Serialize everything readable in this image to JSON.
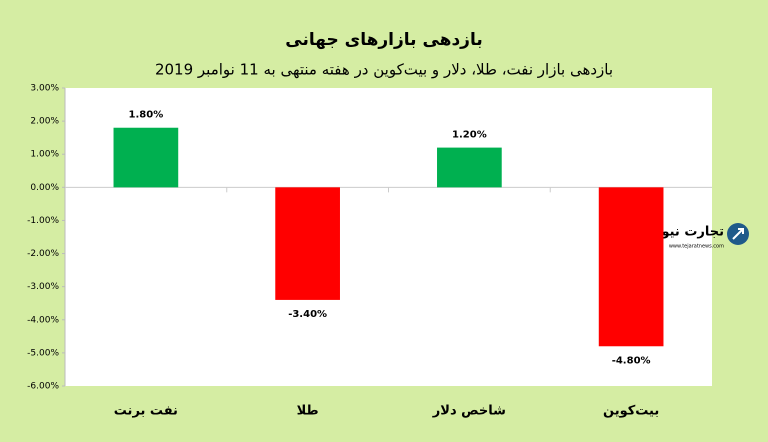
{
  "chart_data": {
    "type": "bar",
    "title": "بازدهی بازارهای جهانی",
    "subtitle": "بازدهی بازار نفت، طلا، دلار و بیت‌کوین در هفته منتهی به 11 نوامبر 2019",
    "categories": [
      "نفت برنت",
      "طلا",
      "شاخص دلار",
      "بیت‌کوین"
    ],
    "values": [
      1.8,
      -3.4,
      1.2,
      -4.8
    ],
    "value_labels": [
      "1.80%",
      "-3.40%",
      "1.20%",
      "-4.80%"
    ],
    "colors": [
      "#00b050",
      "#ff0000",
      "#00b050",
      "#ff0000"
    ],
    "ylim": [
      -6,
      3
    ],
    "yticks": [
      {
        "value": 3,
        "label": "3.00%"
      },
      {
        "value": 2,
        "label": "2.00%"
      },
      {
        "value": 1,
        "label": "1.00%"
      },
      {
        "value": 0,
        "label": "0.00%"
      },
      {
        "value": -1,
        "label": "-1.00%"
      },
      {
        "value": -2,
        "label": "-2.00%"
      },
      {
        "value": -3,
        "label": "-3.00%"
      },
      {
        "value": -4,
        "label": "-4.00%"
      },
      {
        "value": -5,
        "label": "-5.00%"
      },
      {
        "value": -6,
        "label": "-6.00%"
      }
    ],
    "grid": false,
    "watermark": {
      "name": "تجارت نیوز",
      "url": "www.tejaratnews.com"
    }
  }
}
